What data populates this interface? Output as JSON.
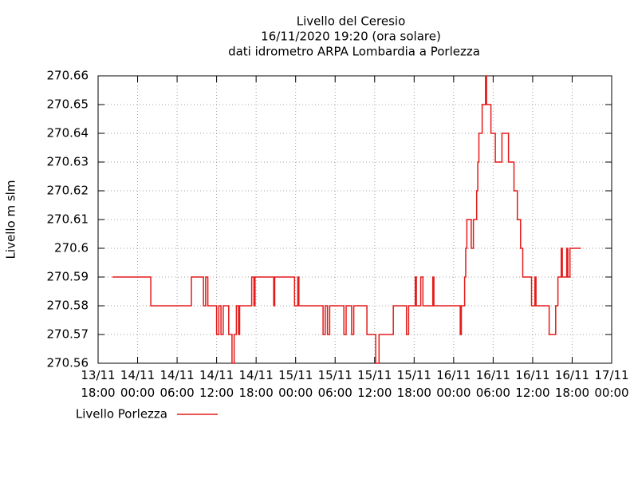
{
  "chart_data": {
    "type": "line",
    "title": [
      "Livello del Ceresio",
      "16/11/2020 19:20 (ora solare)",
      "dati idrometro ARPA Lombardia a Porlezza"
    ],
    "y_label": "Livello m slm",
    "xlim": [
      "13/11 18:00",
      "17/11 00:00"
    ],
    "xticks": [
      "13/11 18:00",
      "14/11 00:00",
      "14/11 06:00",
      "14/11 12:00",
      "14/11 18:00",
      "15/11 00:00",
      "15/11 06:00",
      "15/11 12:00",
      "15/11 18:00",
      "16/11 00:00",
      "16/11 06:00",
      "16/11 12:00",
      "16/11 18:00",
      "17/11 00:00"
    ],
    "ylim": [
      270.56,
      270.66
    ],
    "yticks": [
      270.56,
      270.57,
      270.58,
      270.59,
      270.6,
      270.61,
      270.62,
      270.63,
      270.64,
      270.65,
      270.66
    ],
    "grid": true,
    "legend": "bottom-left",
    "x": [
      "13/11 20:10",
      "14/11 02:00",
      "14/11 02:00",
      "14/11 08:10",
      "14/11 08:10",
      "14/11 10:00",
      "14/11 10:00",
      "14/11 10:20",
      "14/11 10:20",
      "14/11 10:40",
      "14/11 10:40",
      "14/11 12:00",
      "14/11 12:00",
      "14/11 12:20",
      "14/11 12:20",
      "14/11 12:40",
      "14/11 12:40",
      "14/11 13:00",
      "14/11 13:00",
      "14/11 13:50",
      "14/11 13:50",
      "14/11 14:20",
      "14/11 14:20",
      "14/11 14:40",
      "14/11 14:40",
      "14/11 15:00",
      "14/11 15:00",
      "14/11 15:20",
      "14/11 15:20",
      "14/11 15:30",
      "14/11 15:30",
      "14/11 17:20",
      "14/11 17:20",
      "14/11 17:40",
      "14/11 17:40",
      "14/11 17:50",
      "14/11 17:50",
      "14/11 20:40",
      "14/11 20:40",
      "14/11 20:50",
      "14/11 20:50",
      "14/11 23:50",
      "14/11 23:50",
      "15/11 00:20",
      "15/11 00:20",
      "15/11 00:30",
      "15/11 00:30",
      "15/11 04:10",
      "15/11 04:10",
      "15/11 04:30",
      "15/11 04:30",
      "15/11 04:50",
      "15/11 04:50",
      "15/11 05:10",
      "15/11 05:10",
      "15/11 07:20",
      "15/11 07:20",
      "15/11 07:40",
      "15/11 07:40",
      "15/11 08:30",
      "15/11 08:30",
      "15/11 08:50",
      "15/11 08:50",
      "15/11 10:50",
      "15/11 10:50",
      "15/11 12:10",
      "15/11 12:10",
      "15/11 12:40",
      "15/11 12:40",
      "15/11 14:50",
      "15/11 14:50",
      "15/11 16:50",
      "15/11 16:50",
      "15/11 17:10",
      "15/11 17:10",
      "15/11 18:10",
      "15/11 18:10",
      "15/11 18:20",
      "15/11 18:20",
      "15/11 19:00",
      "15/11 19:00",
      "15/11 19:20",
      "15/11 19:20",
      "15/11 20:50",
      "15/11 20:50",
      "15/11 21:00",
      "15/11 21:00",
      "16/11 01:00",
      "16/11 01:00",
      "16/11 01:10",
      "16/11 01:10",
      "16/11 01:40",
      "16/11 01:40",
      "16/11 01:50",
      "16/11 01:50",
      "16/11 02:00",
      "16/11 02:00",
      "16/11 02:40",
      "16/11 02:40",
      "16/11 03:00",
      "16/11 03:00",
      "16/11 03:30",
      "16/11 03:30",
      "16/11 03:40",
      "16/11 03:40",
      "16/11 03:50",
      "16/11 03:50",
      "16/11 04:20",
      "16/11 04:20",
      "16/11 04:50",
      "16/11 04:50",
      "16/11 05:00",
      "16/11 05:00",
      "16/11 05:40",
      "16/11 05:40",
      "16/11 06:20",
      "16/11 06:20",
      "16/11 07:20",
      "16/11 07:20",
      "16/11 08:20",
      "16/11 08:20",
      "16/11 09:10",
      "16/11 09:10",
      "16/11 09:40",
      "16/11 09:40",
      "16/11 10:10",
      "16/11 10:10",
      "16/11 10:30",
      "16/11 10:30",
      "16/11 11:50",
      "16/11 11:50",
      "16/11 12:20",
      "16/11 12:20",
      "16/11 12:30",
      "16/11 12:30",
      "16/11 14:30",
      "16/11 14:30",
      "16/11 15:30",
      "16/11 15:30",
      "16/11 15:50",
      "16/11 15:50",
      "16/11 16:20",
      "16/11 16:20",
      "16/11 16:30",
      "16/11 16:30",
      "16/11 17:10",
      "16/11 17:10",
      "16/11 17:20",
      "16/11 17:20",
      "16/11 17:40",
      "16/11 17:40",
      "16/11 19:20"
    ],
    "series": [
      {
        "name": "Livello Porlezza",
        "color": "#e51a1a",
        "values": [
          270.59,
          270.59,
          270.58,
          270.58,
          270.59,
          270.59,
          270.58,
          270.58,
          270.59,
          270.59,
          270.58,
          270.58,
          270.57,
          270.57,
          270.58,
          270.58,
          270.57,
          270.57,
          270.58,
          270.58,
          270.57,
          270.57,
          270.56,
          270.56,
          270.57,
          270.57,
          270.58,
          270.58,
          270.57,
          270.57,
          270.58,
          270.58,
          270.59,
          270.59,
          270.58,
          270.58,
          270.59,
          270.59,
          270.58,
          270.58,
          270.59,
          270.59,
          270.58,
          270.58,
          270.59,
          270.59,
          270.58,
          270.58,
          270.57,
          270.57,
          270.58,
          270.58,
          270.57,
          270.57,
          270.58,
          270.58,
          270.57,
          270.57,
          270.58,
          270.58,
          270.57,
          270.57,
          270.58,
          270.58,
          270.57,
          270.57,
          270.56,
          270.56,
          270.57,
          270.57,
          270.58,
          270.58,
          270.57,
          270.57,
          270.58,
          270.58,
          270.59,
          270.59,
          270.58,
          270.58,
          270.59,
          270.59,
          270.58,
          270.58,
          270.59,
          270.59,
          270.58,
          270.58,
          270.57,
          270.57,
          270.58,
          270.58,
          270.59,
          270.59,
          270.6,
          270.6,
          270.61,
          270.61,
          270.6,
          270.6,
          270.61,
          270.61,
          270.62,
          270.62,
          270.63,
          270.63,
          270.64,
          270.64,
          270.65,
          270.65,
          270.66,
          270.66,
          270.65,
          270.65,
          270.64,
          270.64,
          270.63,
          270.63,
          270.64,
          270.64,
          270.63,
          270.63,
          270.62,
          270.62,
          270.61,
          270.61,
          270.6,
          270.6,
          270.59,
          270.59,
          270.58,
          270.58,
          270.59,
          270.59,
          270.58,
          270.58,
          270.57,
          270.57,
          270.58,
          270.58,
          270.59,
          270.59,
          270.6,
          270.6,
          270.59,
          270.59,
          270.6,
          270.6,
          270.59,
          270.59,
          270.6,
          270.6
        ]
      }
    ]
  }
}
